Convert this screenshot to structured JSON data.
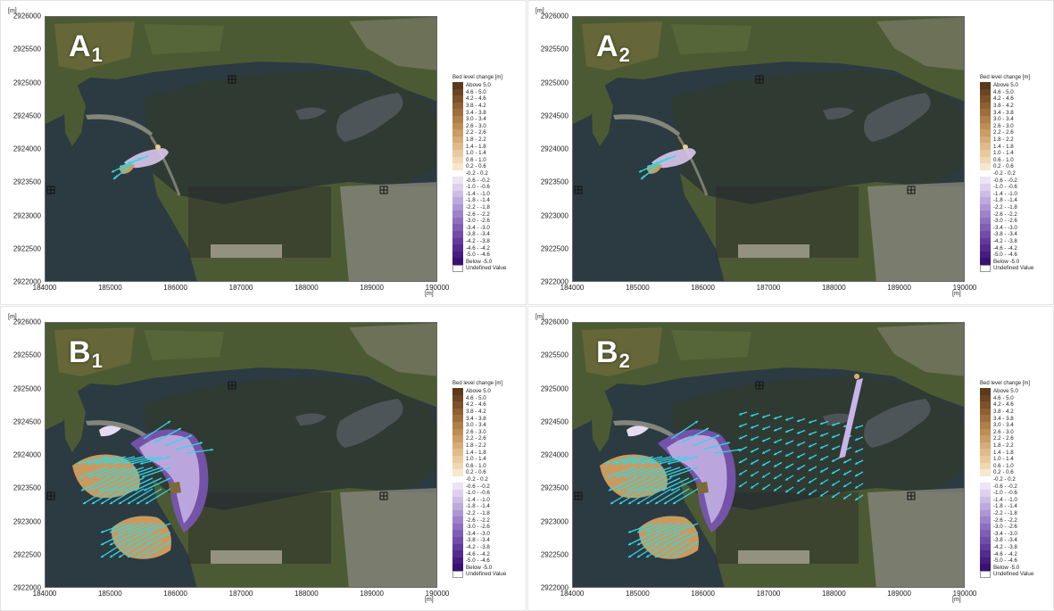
{
  "figure": {
    "unit": "[m]",
    "y_ticks": [
      "2926000",
      "2925500",
      "2925000",
      "2924500",
      "2924000",
      "2923500",
      "2923000",
      "2922500",
      "2922000"
    ],
    "x_ticks": [
      "184000",
      "185000",
      "186000",
      "187000",
      "188000",
      "189000",
      "190000"
    ]
  },
  "legend": {
    "title": "Bed level change [m]",
    "items": [
      {
        "label": "Above 5.0",
        "color": "#5a3a1a"
      },
      {
        "label": "4.6 - 5.0",
        "color": "#6b4522"
      },
      {
        "label": "4.2 - 4.6",
        "color": "#7d5229"
      },
      {
        "label": "3.8 - 4.2",
        "color": "#8e6032"
      },
      {
        "label": "3.4 - 3.8",
        "color": "#9f6e3c"
      },
      {
        "label": "3.0 - 3.4",
        "color": "#b07e48"
      },
      {
        "label": "2.6 - 3.0",
        "color": "#be8d56"
      },
      {
        "label": "2.2 - 2.6",
        "color": "#ca9c66"
      },
      {
        "label": "1.8 - 2.2",
        "color": "#d6ab77"
      },
      {
        "label": "1.4 - 1.8",
        "color": "#e0ba89"
      },
      {
        "label": "1.0 - 1.4",
        "color": "#e9c99d"
      },
      {
        "label": "0.6 - 1.0",
        "color": "#f1d8b3"
      },
      {
        "label": "0.2 - 0.6",
        "color": "#f7e7cc"
      },
      {
        "label": "-0.2 - 0.2",
        "color": "#ffffff"
      },
      {
        "label": "-0.6 - -0.2",
        "color": "#ece3f5"
      },
      {
        "label": "-1.0 - -0.6",
        "color": "#ddd0ee"
      },
      {
        "label": "-1.4 - -1.0",
        "color": "#cdbde6"
      },
      {
        "label": "-1.8 - -1.4",
        "color": "#bda9dd"
      },
      {
        "label": "-2.2 - -1.8",
        "color": "#ae96d4"
      },
      {
        "label": "-2.6 - -2.2",
        "color": "#9e83ca"
      },
      {
        "label": "-3.0 - -2.6",
        "color": "#8f70c0"
      },
      {
        "label": "-3.4 - -3.0",
        "color": "#805eb5"
      },
      {
        "label": "-3.8 - -3.4",
        "color": "#714ca9"
      },
      {
        "label": "-4.2 - -3.8",
        "color": "#633b9d"
      },
      {
        "label": "-4.6 - -4.2",
        "color": "#552b90"
      },
      {
        "label": "-5.0 - -4.6",
        "color": "#471d82"
      },
      {
        "label": "Below -5.0",
        "color": "#3a1172"
      },
      {
        "label": "Undefined Value",
        "color": "#ffffff"
      }
    ]
  },
  "panels": [
    {
      "id": "A1",
      "letter": "A",
      "sub": "1",
      "scenario": "a1"
    },
    {
      "id": "A2",
      "letter": "A",
      "sub": "2",
      "scenario": "a2"
    },
    {
      "id": "B1",
      "letter": "B",
      "sub": "1",
      "scenario": "b1"
    },
    {
      "id": "B2",
      "letter": "B",
      "sub": "2",
      "scenario": "b2"
    }
  ],
  "colors": {
    "sea": "#2c3a42",
    "lagoon": "#2f3a33",
    "land": "#4c5a34",
    "urban": "#8a8a80",
    "vector": "#2fd9e6",
    "accretion": "#c99a5f",
    "erosion": "#7b55b5"
  }
}
